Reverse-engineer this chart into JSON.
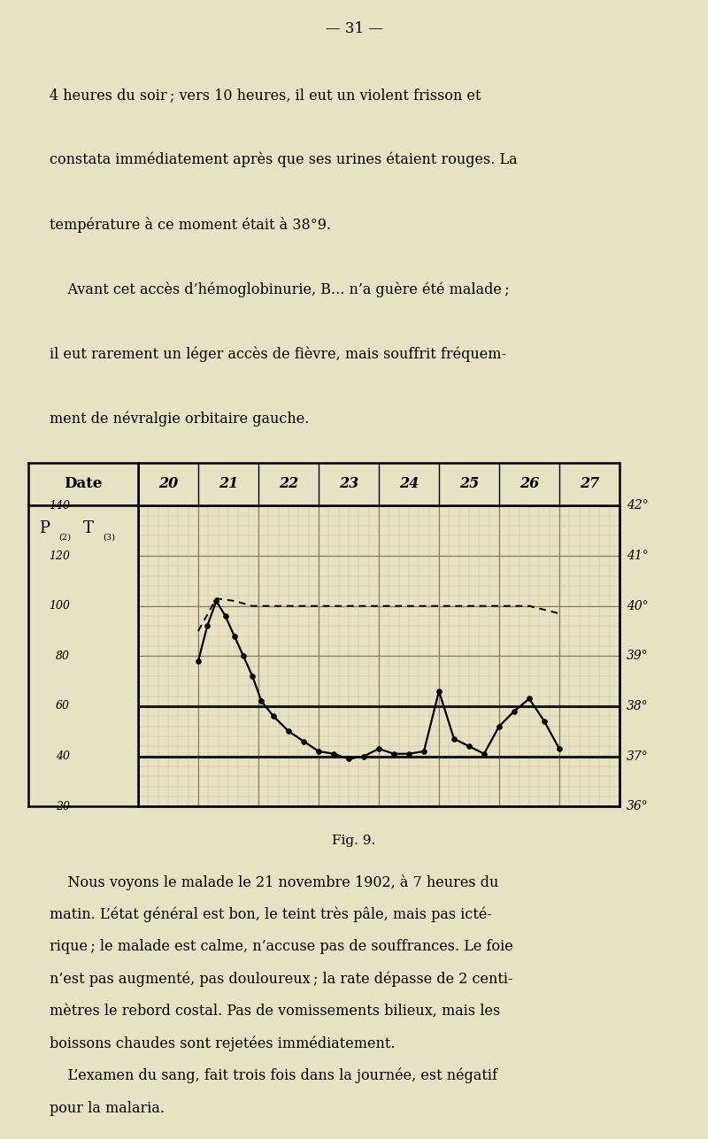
{
  "page_number": "31",
  "text_top_lines": [
    "4 heures du soir ; vers 10 heures, il eut un violent frisson et",
    "constata immédiatement après que ses urines étaient rouges. La",
    "température à ce moment était à 38°9.",
    "    Avant cet accès d’hémoglobinurie, B... n’a guère été malade ;",
    "il eut rarement un léger accès de fièvre, mais souffrit fréquem-",
    "ment de névralgie orbitaire gauche."
  ],
  "text_bottom_lines": [
    "    Nous voyons le malade le 21 novembre 1902, à 7 heures du",
    "matin. L’état général est bon, le teint très pâle, mais pas icté-",
    "rique ; le malade est calme, n’accuse pas de souffrances. Le foie",
    "n’est pas augmenté, pas douloureux ; la rate dépasse de 2 centi-",
    "mètres le rebord costal. Pas de vomissements bilieux, mais les",
    "boissons chaudes sont rejetées immédiatement.",
    "    L’examen du sang, fait trois fois dans la journée, est négatif",
    "pour la malaria."
  ],
  "fig_caption": "Fig. 9.",
  "dates": [
    "20",
    "21",
    "22",
    "23",
    "24",
    "25",
    "26",
    "27"
  ],
  "pulse_left_labels": [
    "140",
    "120",
    "100",
    "80",
    "60",
    "40",
    "20"
  ],
  "temp_right_labels": [
    "42°",
    "41°",
    "40°",
    "39°",
    "38°",
    "37°",
    "36°"
  ],
  "bg_color": "#e8e2c4",
  "chart_bg": "#e8e2c4",
  "grid_minor_color": "#c0b898",
  "grid_major_color": "#8a8060",
  "line_color": "#000000",
  "temp_data_x": [
    21.0,
    21.15,
    21.3,
    21.45,
    21.6,
    21.75,
    21.9,
    22.05,
    22.25,
    22.5,
    22.75,
    23.0,
    23.25,
    23.5,
    23.75,
    24.0,
    24.25,
    24.5,
    24.75,
    25.0,
    25.25,
    25.5,
    25.75,
    26.0,
    26.25,
    26.5,
    26.75,
    27.0
  ],
  "temp_data_y": [
    38.9,
    39.6,
    40.1,
    39.8,
    39.4,
    39.0,
    38.6,
    38.1,
    37.8,
    37.5,
    37.3,
    37.1,
    37.05,
    36.95,
    37.0,
    37.15,
    37.05,
    37.05,
    37.1,
    38.3,
    37.35,
    37.2,
    37.05,
    37.6,
    37.9,
    38.15,
    37.7,
    37.15
  ],
  "pulse_data_x": [
    21.0,
    21.3,
    21.6,
    21.9,
    22.2,
    22.5,
    22.75,
    23.0,
    23.5,
    24.0,
    24.5,
    25.0,
    25.5,
    26.0,
    26.5,
    27.0
  ],
  "pulse_data_y_temp": [
    39.5,
    40.15,
    40.1,
    40.0,
    40.0,
    40.0,
    40.0,
    40.0,
    40.0,
    40.0,
    40.0,
    40.0,
    40.0,
    40.0,
    40.0,
    39.85
  ]
}
